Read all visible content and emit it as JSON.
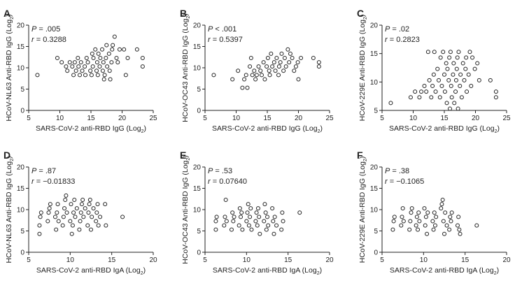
{
  "chart_data": [
    {
      "panel": "A",
      "type": "scatter",
      "xlabel": "SARS-CoV-2 anti-RBD IgG (Log",
      "xlabel_sub": "2",
      "xlabel_end": ")",
      "ylabel": "HCoV-NL63 Anti-RBD IgG (Log",
      "ylabel_sub": "2",
      "ylabel_end": ")",
      "xlim": [
        5,
        25
      ],
      "ylim": [
        0,
        20
      ],
      "xticks": [
        "5",
        "10",
        "15",
        "20",
        "25"
      ],
      "yticks": [
        "0",
        "5",
        "10",
        "15",
        "20"
      ],
      "stat_p_label": "P",
      "stat_p_value": " = .005",
      "stat_r_label": "r",
      "stat_r_value": " = 0.3288",
      "points": [
        [
          6.4,
          8.3
        ],
        [
          9.6,
          12.3
        ],
        [
          10.3,
          11.3
        ],
        [
          11,
          10.3
        ],
        [
          11.2,
          9.3
        ],
        [
          11.6,
          11.3
        ],
        [
          12,
          10.3
        ],
        [
          12.2,
          8.3
        ],
        [
          12.4,
          11.3
        ],
        [
          12.6,
          9.3
        ],
        [
          12.9,
          12.3
        ],
        [
          13,
          10.3
        ],
        [
          13.2,
          8.3
        ],
        [
          13.4,
          11.3
        ],
        [
          13.6,
          9.3
        ],
        [
          14,
          10.3
        ],
        [
          14.1,
          8.3
        ],
        [
          14.3,
          12.3
        ],
        [
          14.5,
          11.3
        ],
        [
          14.9,
          9.3
        ],
        [
          15.1,
          8.3
        ],
        [
          15.2,
          13.3
        ],
        [
          15.3,
          10.3
        ],
        [
          15.4,
          12.3
        ],
        [
          15.7,
          14.3
        ],
        [
          15.9,
          9.3
        ],
        [
          16,
          11.3
        ],
        [
          16.1,
          8.3
        ],
        [
          16.2,
          13.3
        ],
        [
          16.4,
          10.3
        ],
        [
          16.5,
          12.3
        ],
        [
          16.8,
          14.3
        ],
        [
          16.9,
          9.3
        ],
        [
          17,
          11.3
        ],
        [
          17.1,
          7.3
        ],
        [
          17.2,
          8.3
        ],
        [
          17.4,
          12.3
        ],
        [
          17.5,
          15.3
        ],
        [
          17.6,
          10.3
        ],
        [
          17.9,
          13.3
        ],
        [
          18,
          9.3
        ],
        [
          18.1,
          7.3
        ],
        [
          18.3,
          11.3
        ],
        [
          18.4,
          14.3
        ],
        [
          18.5,
          15.3
        ],
        [
          18.8,
          17.3
        ],
        [
          19.1,
          12.3
        ],
        [
          19.3,
          11.3
        ],
        [
          19.6,
          14.3
        ],
        [
          20.3,
          14.3
        ],
        [
          20.6,
          8.3
        ],
        [
          20.9,
          12.3
        ],
        [
          22.4,
          14.3
        ],
        [
          23.3,
          12.3
        ],
        [
          23.3,
          10.3
        ]
      ]
    },
    {
      "panel": "B",
      "type": "scatter",
      "xlabel": "SARS-CoV-2 anti-RBD IgG (Log",
      "xlabel_sub": "2",
      "xlabel_end": ")",
      "ylabel": "HCoV-OC43 Anti-RBD IgG (Log",
      "ylabel_sub": "2",
      "ylabel_end": ")",
      "xlim": [
        5,
        25
      ],
      "ylim": [
        0,
        20
      ],
      "xticks": [
        "5",
        "10",
        "15",
        "20",
        "25"
      ],
      "yticks": [
        "0",
        "5",
        "10",
        "15",
        "20"
      ],
      "stat_p_label": "P",
      "stat_p_value": " < .001",
      "stat_r_label": "r",
      "stat_r_value": " = 0.5397",
      "points": [
        [
          6.4,
          8.3
        ],
        [
          9.4,
          7.3
        ],
        [
          10.3,
          9.3
        ],
        [
          11,
          5.3
        ],
        [
          11.3,
          7.3
        ],
        [
          11.6,
          8.3
        ],
        [
          11.8,
          5.3
        ],
        [
          12.2,
          10.3
        ],
        [
          12.4,
          12.3
        ],
        [
          12.6,
          8.3
        ],
        [
          12.9,
          9.3
        ],
        [
          13.1,
          7.3
        ],
        [
          13.3,
          8.3
        ],
        [
          13.6,
          10.3
        ],
        [
          13.9,
          9.3
        ],
        [
          14.1,
          8.3
        ],
        [
          14.4,
          11.3
        ],
        [
          14.6,
          7.3
        ],
        [
          14.9,
          10.3
        ],
        [
          15.1,
          12.3
        ],
        [
          15.3,
          9.3
        ],
        [
          15.4,
          8.3
        ],
        [
          15.6,
          13.3
        ],
        [
          15.8,
          10.3
        ],
        [
          16.1,
          11.3
        ],
        [
          16.3,
          9.3
        ],
        [
          16.5,
          12.3
        ],
        [
          16.8,
          8.3
        ],
        [
          16.9,
          10.3
        ],
        [
          17.1,
          11.3
        ],
        [
          17.3,
          13.3
        ],
        [
          17.6,
          9.3
        ],
        [
          17.8,
          12.3
        ],
        [
          18,
          10.3
        ],
        [
          18.3,
          14.3
        ],
        [
          18.5,
          11.3
        ],
        [
          18.7,
          13.3
        ],
        [
          19,
          12.3
        ],
        [
          19.3,
          9.3
        ],
        [
          19.6,
          10.3
        ],
        [
          19.9,
          11.3
        ],
        [
          20,
          7.3
        ],
        [
          20.4,
          12.3
        ],
        [
          22.4,
          12.3
        ],
        [
          23.3,
          10.3
        ],
        [
          23.3,
          11.3
        ]
      ]
    },
    {
      "panel": "C",
      "type": "scatter",
      "xlabel": "SARS-CoV-2 anti-RBD IgG (Log",
      "xlabel_sub": "2",
      "xlabel_end": ")",
      "ylabel": "HCoV-229E Anti-RBD IgG (Log",
      "ylabel_sub": "2",
      "ylabel_end": ")",
      "xlim": [
        5,
        25
      ],
      "ylim": [
        5,
        20
      ],
      "xticks": [
        "5",
        "10",
        "15",
        "20",
        "25"
      ],
      "yticks": [
        "5",
        "10",
        "15",
        "20"
      ],
      "stat_p_label": "P",
      "stat_p_value": " = .02",
      "stat_r_label": "r",
      "stat_r_value": " = 0.2823",
      "points": [
        [
          6.4,
          6.3
        ],
        [
          9.6,
          7.3
        ],
        [
          10.3,
          8.3
        ],
        [
          11,
          7.3
        ],
        [
          11.3,
          8.3
        ],
        [
          11.8,
          9.3
        ],
        [
          12.1,
          8.3
        ],
        [
          12.4,
          15.3
        ],
        [
          12.6,
          10.3
        ],
        [
          12.9,
          7.3
        ],
        [
          13.1,
          9.3
        ],
        [
          13.3,
          11.3
        ],
        [
          13.4,
          15.3
        ],
        [
          13.6,
          8.3
        ],
        [
          13.9,
          12.3
        ],
        [
          14.1,
          10.3
        ],
        [
          14.3,
          7.3
        ],
        [
          14.4,
          14.3
        ],
        [
          14.6,
          9.3
        ],
        [
          14.8,
          15.3
        ],
        [
          15,
          11.3
        ],
        [
          15.1,
          8.3
        ],
        [
          15.3,
          13.3
        ],
        [
          15.4,
          6.3
        ],
        [
          15.5,
          12.3
        ],
        [
          15.7,
          10.3
        ],
        [
          15.8,
          14.3
        ],
        [
          15.9,
          5.3
        ],
        [
          16,
          15.3
        ],
        [
          16.1,
          9.3
        ],
        [
          16.2,
          7.3
        ],
        [
          16.4,
          11.3
        ],
        [
          16.5,
          13.3
        ],
        [
          16.6,
          6.3
        ],
        [
          16.8,
          8.3
        ],
        [
          16.9,
          10.3
        ],
        [
          17,
          12.3
        ],
        [
          17.1,
          14.3
        ],
        [
          17.2,
          5.3
        ],
        [
          17.3,
          15.3
        ],
        [
          17.5,
          9.3
        ],
        [
          17.6,
          11.3
        ],
        [
          17.8,
          7.3
        ],
        [
          18,
          13.3
        ],
        [
          18.2,
          10.3
        ],
        [
          18.4,
          12.3
        ],
        [
          18.5,
          14.3
        ],
        [
          18.6,
          8.3
        ],
        [
          18.9,
          11.3
        ],
        [
          19.1,
          15.3
        ],
        [
          19.3,
          9.3
        ],
        [
          19.5,
          14.3
        ],
        [
          19.9,
          12.3
        ],
        [
          20.3,
          13.3
        ],
        [
          20.6,
          10.3
        ],
        [
          22.4,
          10.3
        ],
        [
          23.3,
          8.3
        ],
        [
          23.3,
          7.3
        ]
      ]
    },
    {
      "panel": "D",
      "type": "scatter",
      "xlabel": "SARS-CoV-2 anti-RBD IgA (Log",
      "xlabel_sub": "2",
      "xlabel_end": ")",
      "ylabel": "HCoV-NL63 Anti-RBD IgG (Log",
      "ylabel_sub": "2",
      "ylabel_end": ")",
      "xlim": [
        5,
        20
      ],
      "ylim": [
        0,
        20
      ],
      "xticks": [
        "5",
        "10",
        "15",
        "20"
      ],
      "yticks": [
        "0",
        "5",
        "10",
        "15",
        "20"
      ],
      "stat_p_label": "P",
      "stat_p_value": " = .87",
      "stat_r_label": "r",
      "stat_r_value": " = −0.01833",
      "points": [
        [
          6.3,
          4.3
        ],
        [
          6.3,
          6.3
        ],
        [
          6.4,
          8.3
        ],
        [
          6.5,
          9.3
        ],
        [
          7.3,
          7.3
        ],
        [
          7.4,
          9.3
        ],
        [
          7.5,
          10.3
        ],
        [
          7.6,
          11.3
        ],
        [
          8.2,
          8.3
        ],
        [
          8.3,
          5.3
        ],
        [
          8.4,
          9.3
        ],
        [
          8.5,
          11.3
        ],
        [
          8.6,
          7.3
        ],
        [
          9.1,
          6.3
        ],
        [
          9.2,
          8.3
        ],
        [
          9.3,
          10.3
        ],
        [
          9.4,
          12.3
        ],
        [
          9.5,
          13.3
        ],
        [
          9.6,
          9.3
        ],
        [
          10,
          7.3
        ],
        [
          10.1,
          11.3
        ],
        [
          10.2,
          4.3
        ],
        [
          10.3,
          6.3
        ],
        [
          10.4,
          9.3
        ],
        [
          10.5,
          12.3
        ],
        [
          10.6,
          8.3
        ],
        [
          10.8,
          10.3
        ],
        [
          11.1,
          5.3
        ],
        [
          11.2,
          7.3
        ],
        [
          11.3,
          9.3
        ],
        [
          11.4,
          11.3
        ],
        [
          11.5,
          12.3
        ],
        [
          11.6,
          8.3
        ],
        [
          11.8,
          10.3
        ],
        [
          12.1,
          6.3
        ],
        [
          12.2,
          9.3
        ],
        [
          12.3,
          11.3
        ],
        [
          12.4,
          12.3
        ],
        [
          12.5,
          5.3
        ],
        [
          12.6,
          8.3
        ],
        [
          12.8,
          10.3
        ],
        [
          13.1,
          7.3
        ],
        [
          13.2,
          9.3
        ],
        [
          13.3,
          11.3
        ],
        [
          13.4,
          6.3
        ],
        [
          13.6,
          8.3
        ],
        [
          14.2,
          11.3
        ],
        [
          14.3,
          6.3
        ],
        [
          16.3,
          8.3
        ]
      ]
    },
    {
      "panel": "E",
      "type": "scatter",
      "xlabel": "SARS-CoV-2 anti-RBD IgA (Log",
      "xlabel_sub": "2",
      "xlabel_end": ")",
      "ylabel": "HCoV-OC43 Anti-RBD IgG (Log",
      "ylabel_sub": "2",
      "ylabel_end": ")",
      "xlim": [
        5,
        20
      ],
      "ylim": [
        0,
        20
      ],
      "xticks": [
        "5",
        "10",
        "15",
        "20"
      ],
      "yticks": [
        "0",
        "5",
        "10",
        "15",
        "20"
      ],
      "stat_p_label": "P",
      "stat_p_value": " = .53",
      "stat_r_label": "r",
      "stat_r_value": " = 0.07640",
      "points": [
        [
          6.3,
          5.3
        ],
        [
          6.3,
          7.3
        ],
        [
          6.4,
          8.3
        ],
        [
          7.3,
          6.3
        ],
        [
          7.4,
          8.3
        ],
        [
          7.5,
          12.3
        ],
        [
          7.6,
          7.3
        ],
        [
          8.2,
          5.3
        ],
        [
          8.3,
          9.3
        ],
        [
          8.4,
          7.3
        ],
        [
          8.5,
          8.3
        ],
        [
          9.1,
          6.3
        ],
        [
          9.2,
          10.3
        ],
        [
          9.3,
          8.3
        ],
        [
          9.4,
          9.3
        ],
        [
          9.5,
          5.3
        ],
        [
          10,
          7.3
        ],
        [
          10.1,
          9.3
        ],
        [
          10.2,
          11.3
        ],
        [
          10.3,
          6.3
        ],
        [
          10.4,
          8.3
        ],
        [
          10.5,
          10.3
        ],
        [
          10.6,
          5.3
        ],
        [
          11.1,
          7.3
        ],
        [
          11.2,
          9.3
        ],
        [
          11.3,
          6.3
        ],
        [
          11.4,
          10.3
        ],
        [
          11.5,
          8.3
        ],
        [
          11.6,
          4.3
        ],
        [
          12.1,
          7.3
        ],
        [
          12.2,
          11.3
        ],
        [
          12.3,
          9.3
        ],
        [
          12.4,
          5.3
        ],
        [
          12.5,
          8.3
        ],
        [
          12.6,
          6.3
        ],
        [
          13.1,
          10.3
        ],
        [
          13.2,
          7.3
        ],
        [
          13.3,
          4.3
        ],
        [
          13.4,
          8.3
        ],
        [
          13.6,
          6.3
        ],
        [
          14.2,
          5.3
        ],
        [
          14.3,
          9.3
        ],
        [
          14.4,
          7.3
        ],
        [
          16.4,
          9.3
        ]
      ]
    },
    {
      "panel": "F",
      "type": "scatter",
      "xlabel": "SARS-CoV-2 anti-RBD IgA (Log",
      "xlabel_sub": "2",
      "xlabel_end": ")",
      "ylabel": "HCoV-229E Anti-RBD IgG (Log",
      "ylabel_sub": "2",
      "ylabel_end": ")",
      "xlim": [
        5,
        20
      ],
      "ylim": [
        0,
        20
      ],
      "xticks": [
        "5",
        "10",
        "15",
        "20"
      ],
      "yticks": [
        "0",
        "5",
        "10",
        "15",
        "20"
      ],
      "stat_p_label": "P",
      "stat_p_value": " = .38",
      "stat_r_label": "r",
      "stat_r_value": " = −0.1065",
      "points": [
        [
          6.3,
          5.3
        ],
        [
          6.4,
          7.3
        ],
        [
          6.5,
          8.3
        ],
        [
          7.3,
          6.3
        ],
        [
          7.4,
          8.3
        ],
        [
          7.5,
          10.3
        ],
        [
          7.6,
          7.3
        ],
        [
          8.3,
          5.3
        ],
        [
          8.4,
          7.3
        ],
        [
          8.5,
          9.3
        ],
        [
          8.6,
          10.3
        ],
        [
          9.1,
          6.3
        ],
        [
          9.2,
          8.3
        ],
        [
          9.3,
          5.3
        ],
        [
          9.4,
          9.3
        ],
        [
          9.5,
          7.3
        ],
        [
          10.1,
          10.3
        ],
        [
          10.2,
          6.3
        ],
        [
          10.3,
          8.3
        ],
        [
          10.4,
          4.3
        ],
        [
          10.5,
          9.3
        ],
        [
          11.1,
          7.3
        ],
        [
          11.2,
          5.3
        ],
        [
          11.3,
          9.3
        ],
        [
          11.4,
          6.3
        ],
        [
          11.5,
          8.3
        ],
        [
          12.1,
          10.3
        ],
        [
          12.2,
          11.3
        ],
        [
          12.3,
          12.3
        ],
        [
          12.4,
          7.3
        ],
        [
          12.5,
          4.3
        ],
        [
          12.6,
          9.3
        ],
        [
          12.8,
          6.3
        ],
        [
          13.1,
          5.3
        ],
        [
          13.2,
          8.3
        ],
        [
          13.3,
          7.3
        ],
        [
          13.4,
          9.3
        ],
        [
          14.1,
          6.3
        ],
        [
          14.2,
          8.3
        ],
        [
          14.3,
          5.3
        ],
        [
          14.4,
          4.3
        ],
        [
          16.4,
          6.3
        ]
      ]
    }
  ]
}
